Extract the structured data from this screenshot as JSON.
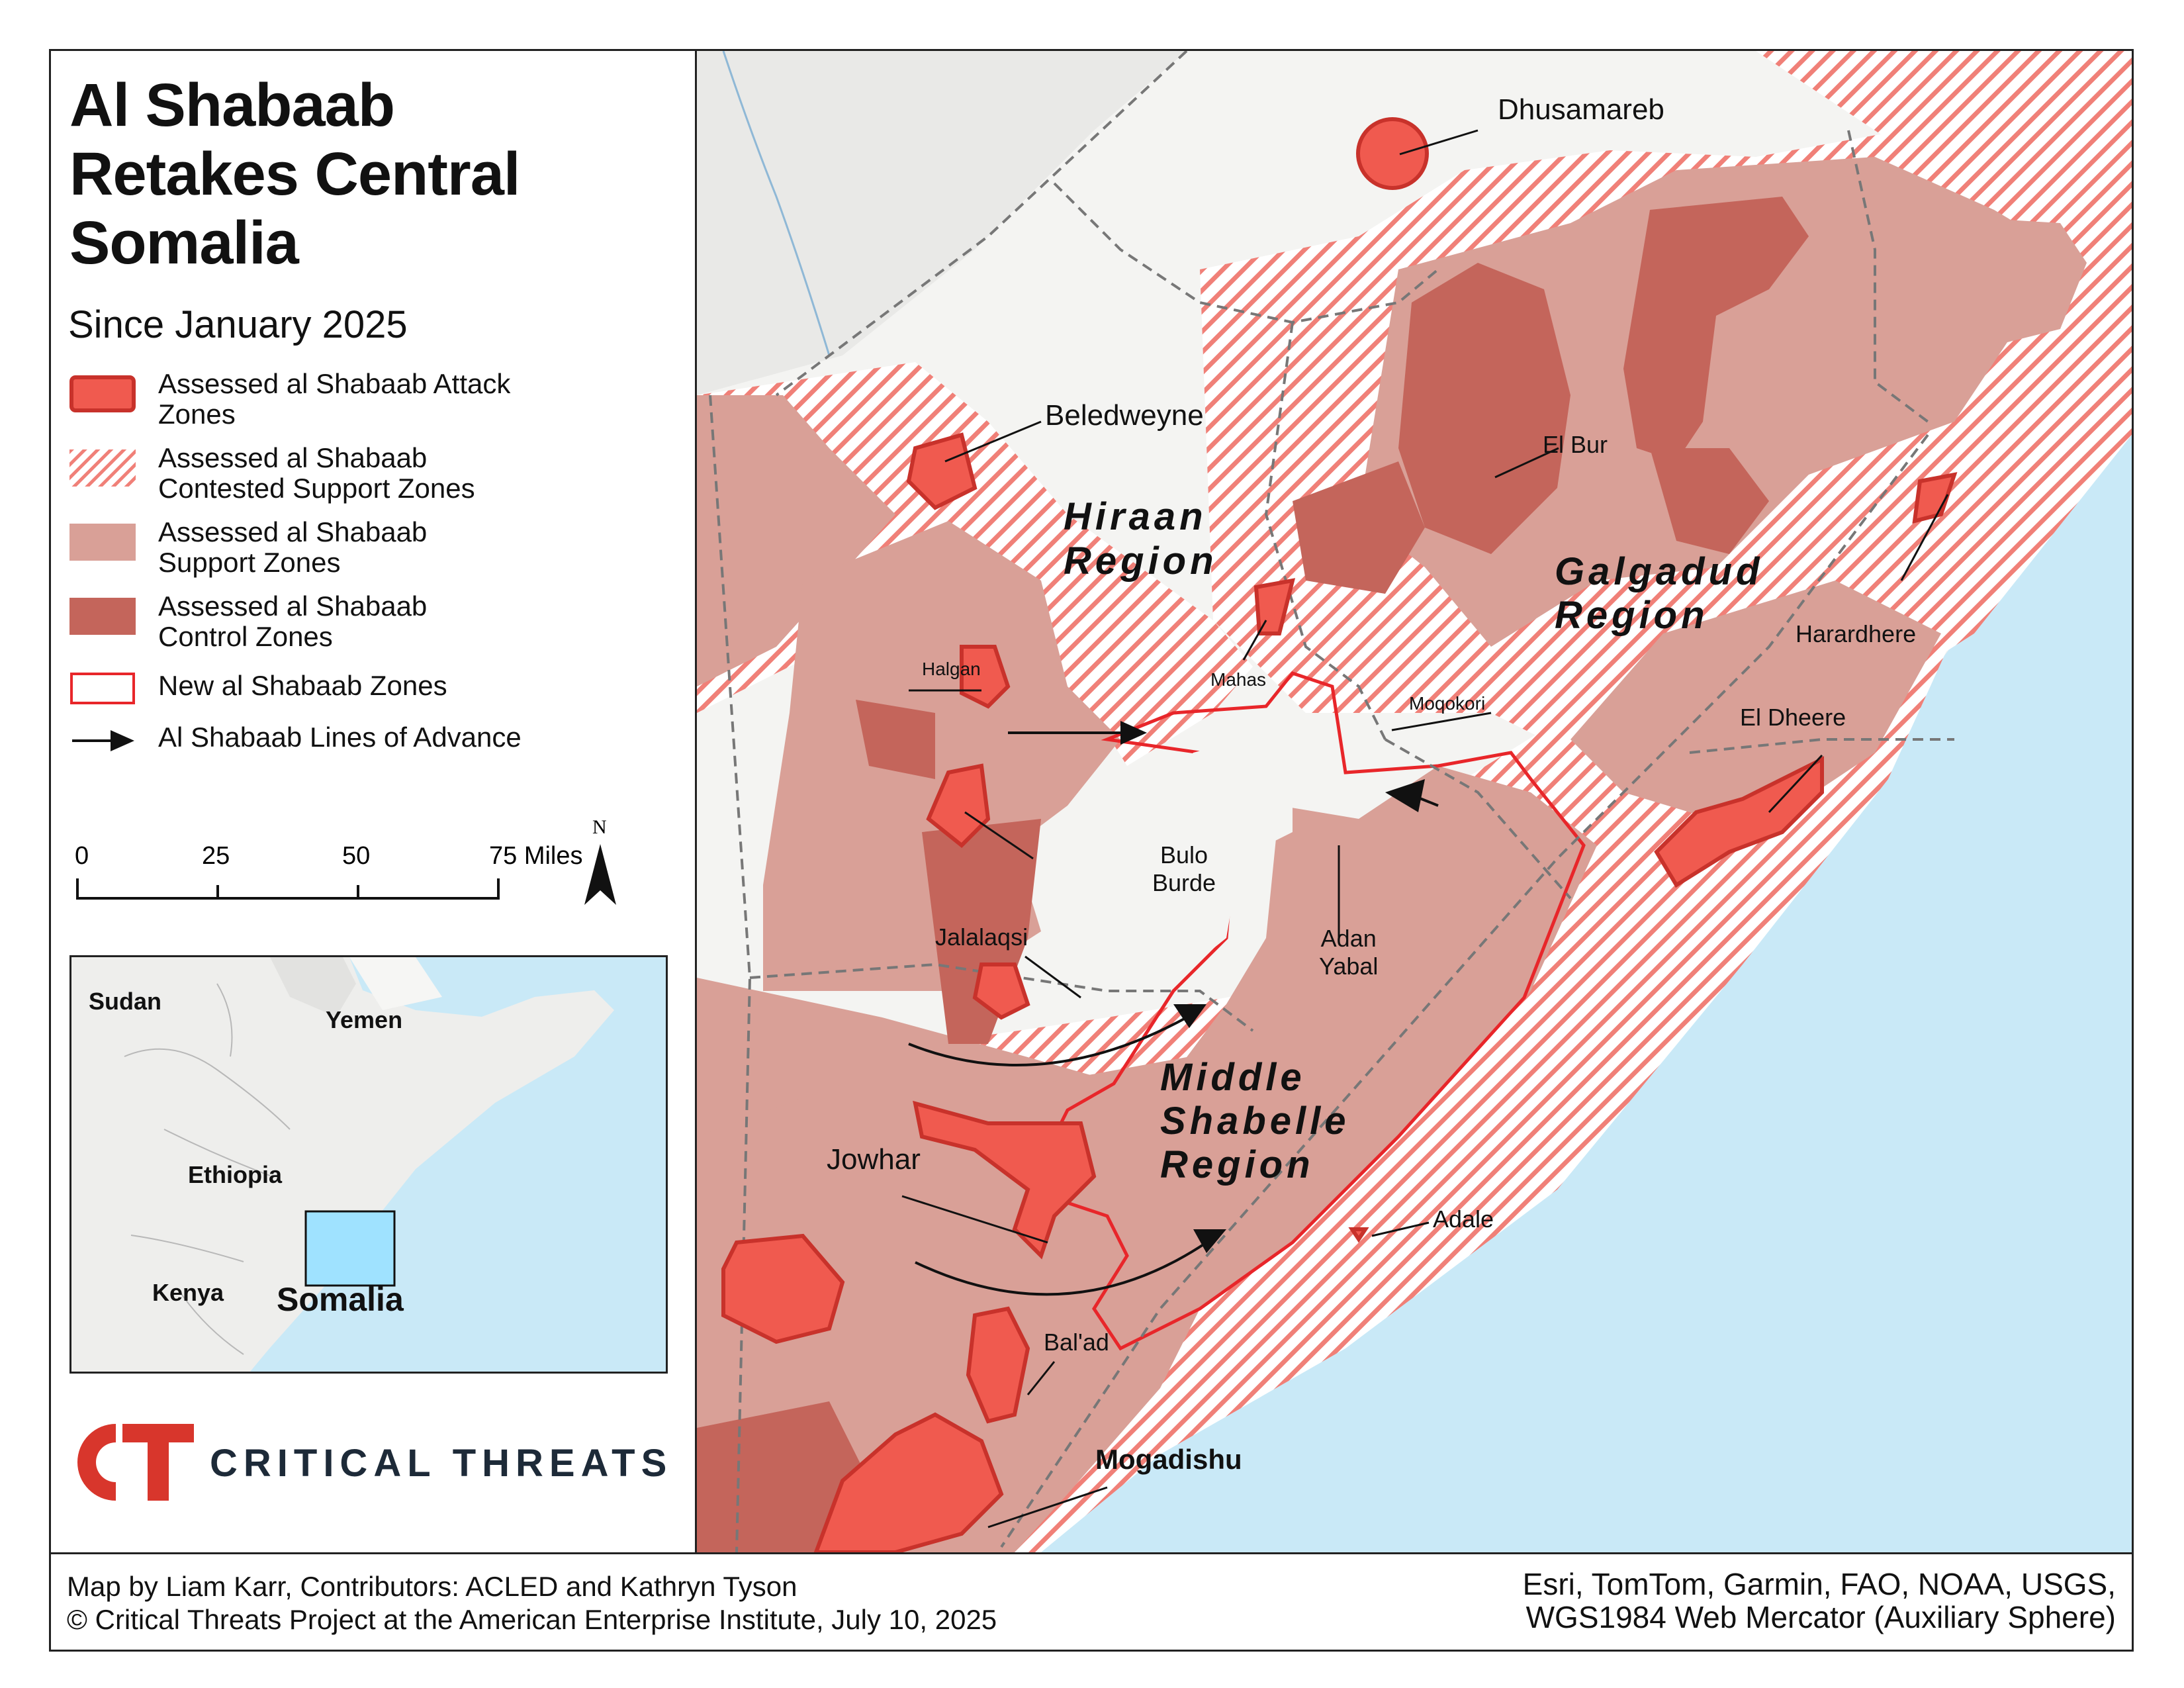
{
  "title_lines": [
    "Al Shabaab",
    "Retakes Central",
    "Somalia"
  ],
  "subtitle": "Since January 2025",
  "legend": {
    "attack_line1": "Assessed al Shabaab Attack",
    "attack_line2": "Zones",
    "contested_line1": "Assessed al Shabaab",
    "contested_line2": "Contested Support Zones",
    "support_line1": "Assessed al Shabaab",
    "support_line2": "Support Zones",
    "control_line1": "Assessed al Shabaab",
    "control_line2": "Control Zones",
    "new_zones": "New al Shabaab Zones",
    "advance": "Al Shabaab Lines of Advance"
  },
  "scale": {
    "t0": "0",
    "t1": "25",
    "t2": "50",
    "t3": "75 Miles"
  },
  "north_label": "N",
  "inset": {
    "sudan": "Sudan",
    "yemen": "Yemen",
    "ethiopia": "Ethiopia",
    "kenya": "Kenya",
    "somalia": "Somalia"
  },
  "brand": "CRITICAL THREATS",
  "places": {
    "dhusamareb": "Dhusamareb",
    "beledweyne": "Beledweyne",
    "hiraan1": "Hiraan",
    "hiraan2": "Region",
    "el_bur": "El Bur",
    "galgadud1": "Galgadud",
    "galgadud2": "Region",
    "harardhere": "Harardhere",
    "halgan": "Halgan",
    "mahas": "Mahas",
    "moqokori": "Moqokori",
    "el_dheere": "El Dheere",
    "bulo1": "Bulo",
    "bulo2": "Burde",
    "jalalaqsi": "Jalalaqsi",
    "adan1": "Adan",
    "adan2": "Yabal",
    "ms1": "Middle",
    "ms2": "Shabelle",
    "ms3": "Region",
    "jowhar": "Jowhar",
    "adale": "Adale",
    "balad": "Bal'ad",
    "mogadishu": "Mogadishu"
  },
  "credits": {
    "left1": "Map by Liam Karr, Contributors: ACLED and Kathryn Tyson",
    "left2": "© Critical Threats Project at the American Enterprise Institute, July 10, 2025",
    "right1": "Esri, TomTom, Garmin, FAO, NOAA, USGS,",
    "right2": "WGS1984 Web Mercator (Auxiliary Sphere)"
  },
  "colors": {
    "attack": "#f05a4f",
    "attack_stroke": "#c8322b",
    "support": "#d9a097",
    "control": "#c4655b",
    "new_outline": "#e8262a",
    "hatch": "#f08078",
    "land": "#f4f4f2",
    "sea": "#c9e9f7",
    "brand_red": "#d8362c",
    "brand_dark": "#1d2a38"
  }
}
